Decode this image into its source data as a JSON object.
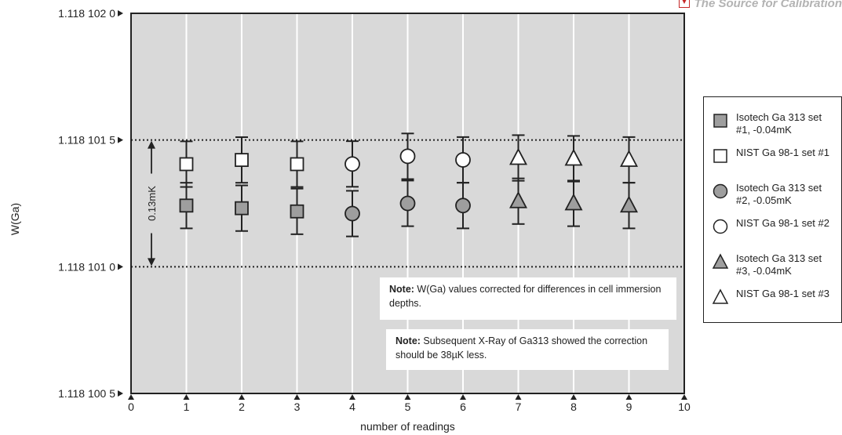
{
  "brand": {
    "text": "The Source for Calibration"
  },
  "chart_data": {
    "type": "scatter",
    "xlabel": "number of readings",
    "ylabel": "W(Ga)",
    "x_ticks": [
      "0",
      "1",
      "2",
      "3",
      "4",
      "5",
      "6",
      "7",
      "8",
      "9",
      "10"
    ],
    "xlim": [
      0,
      10
    ],
    "y_ticks": [
      "1.118 100 5",
      "1.118 101 0",
      "1.118 101 5",
      "1.118 102 0"
    ],
    "ylim": [
      1.1181005,
      1.118102
    ],
    "grid": "vertical",
    "legend_position": "right",
    "reference_lines": [
      1.118101,
      1.1181015
    ],
    "annotation": {
      "label": "0.13mK",
      "from": 1.118101,
      "to": 1.1181015
    },
    "notes": [
      {
        "bold": "Note:",
        "text": " W(Ga) values corrected for differences in cell immersion depths."
      },
      {
        "bold": "Note:",
        "text": " Subsequent X-Ray of Ga313 showed the correction should be 38µK less."
      }
    ],
    "series": [
      {
        "name": "Isotech Ga 313 set #1, -0.04mK",
        "marker": "square",
        "fill": "#9e9e9e",
        "x": [
          1,
          2,
          3
        ],
        "y": [
          1.1181012414,
          1.118101231,
          1.1181012183
        ],
        "err": [
          9e-08,
          9e-08,
          9e-08
        ]
      },
      {
        "name": "NIST Ga 98-1 set #1",
        "marker": "square",
        "fill": "#ffffff",
        "x": [
          1,
          2,
          3
        ],
        "y": [
          1.1181014048,
          1.1181014214,
          1.1181014048
        ],
        "err": [
          9e-08,
          9e-08,
          9e-08
        ]
      },
      {
        "name": "Isotech Ga 313 set #2, -0.05mK",
        "marker": "circle",
        "fill": "#9e9e9e",
        "x": [
          4,
          5,
          6
        ],
        "y": [
          1.1181012097,
          1.11810125,
          1.1181012414
        ],
        "err": [
          9e-08,
          9e-08,
          9e-08
        ]
      },
      {
        "name": "NIST Ga 98-1 set #2",
        "marker": "circle",
        "fill": "#ffffff",
        "x": [
          4,
          5,
          6
        ],
        "y": [
          1.1181014055,
          1.1181014359,
          1.1181014217
        ],
        "err": [
          9e-08,
          9e-08,
          9e-08
        ]
      },
      {
        "name": "Isotech Ga 313 set #3, -0.04mK",
        "marker": "triangle",
        "fill": "#9e9e9e",
        "x": [
          7,
          8,
          9
        ],
        "y": [
          1.1181012586,
          1.11810125,
          1.1181012414
        ],
        "err": [
          9e-08,
          9e-08,
          9e-08
        ]
      },
      {
        "name": "NIST Ga 98-1 set #3",
        "marker": "triangle",
        "fill": "#ffffff",
        "x": [
          7,
          8,
          9
        ],
        "y": [
          1.1181014293,
          1.1181014262,
          1.1181014217
        ],
        "err": [
          9e-08,
          9e-08,
          9e-08
        ]
      }
    ]
  },
  "legend": {
    "items": [
      {
        "label": "Isotech Ga 313 set #1, -0.04mK"
      },
      {
        "label": "NIST Ga 98-1 set #1"
      },
      {
        "label": "Isotech Ga 313 set #2, -0.05mK"
      },
      {
        "label": "NIST Ga 98-1 set #2"
      },
      {
        "label": "Isotech Ga 313 set #3, -0.04mK"
      },
      {
        "label": "NIST Ga 98-1 set #3"
      }
    ]
  },
  "colors": {
    "plot_bg": "#d9d9d9",
    "gridline": "#ffffff",
    "marker_gray": "#9e9e9e",
    "axis": "#222222"
  }
}
